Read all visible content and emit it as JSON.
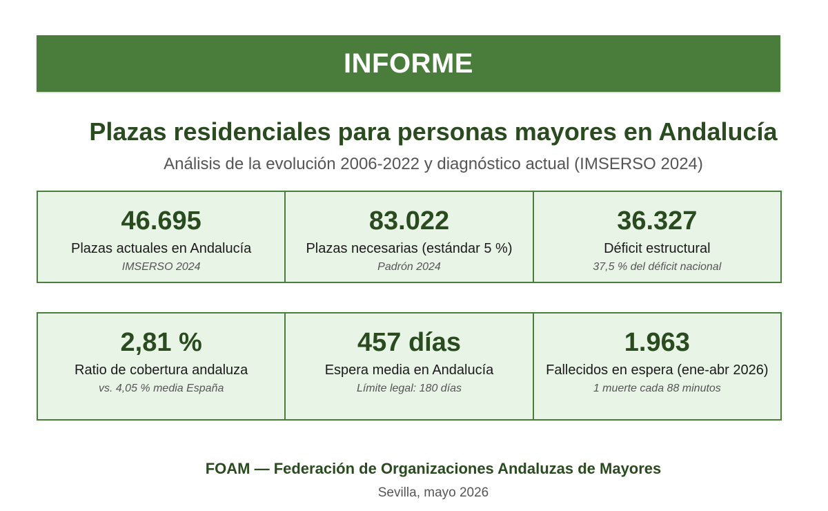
{
  "banner": {
    "title": "INFORME"
  },
  "header": {
    "title": "Plazas residenciales para personas mayores en Andalucía",
    "subtitle": "Análisis de la evolución 2006-2022 y diagnóstico actual (IMSERSO 2024)"
  },
  "stats": [
    {
      "value": "46.695",
      "label": "Plazas actuales en Andalucía",
      "note": "IMSERSO 2024"
    },
    {
      "value": "83.022",
      "label": "Plazas necesarias (estándar 5 %)",
      "note": "Padrón 2024"
    },
    {
      "value": "36.327",
      "label": "Déficit estructural",
      "note": "37,5 % del déficit nacional"
    },
    {
      "value": "2,81 %",
      "label": "Ratio de cobertura andaluza",
      "note": "vs. 4,05 % media España"
    },
    {
      "value": "457 días",
      "label": "Espera media en Andalucía",
      "note": "Límite legal: 180 días"
    },
    {
      "value": "1.963",
      "label": "Fallecidos en espera (ene-abr 2026)",
      "note": "1 muerte cada 88 minutos"
    }
  ],
  "footer": {
    "organization": "FOAM — Federación de Organizaciones Andaluzas de Mayores",
    "place_date": "Sevilla, mayo 2026"
  },
  "colors": {
    "accent": "#4a7d3b",
    "card_background": "#e8f4e6",
    "heading": "#2a4a1f"
  }
}
